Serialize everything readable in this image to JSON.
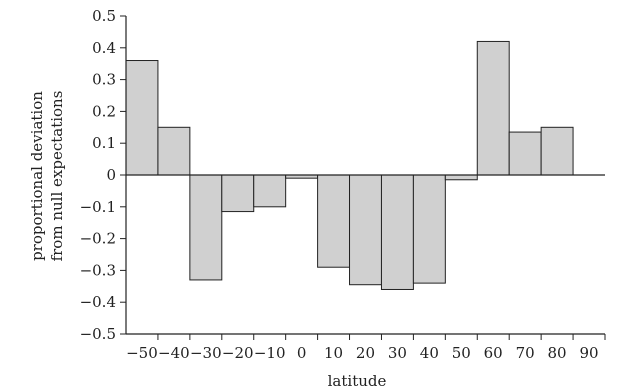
{
  "chart_data": {
    "type": "bar",
    "xlabel": "latitude",
    "ylabel_lines": [
      "proportional deviation",
      "from null expectations"
    ],
    "ylim": [
      -0.5,
      0.5
    ],
    "y_ticks": [
      0.5,
      0.4,
      0.3,
      0.2,
      0.1,
      0,
      -0.1,
      -0.2,
      -0.3,
      -0.4,
      -0.5
    ],
    "y_tick_labels": [
      "0.5",
      "0.4",
      "0.3",
      "0.2",
      "0.1",
      "0",
      "−0.1",
      "−0.2",
      "−0.3",
      "−0.4",
      "−0.5"
    ],
    "x_ticks": [
      -50,
      -40,
      -30,
      -20,
      -10,
      0,
      10,
      20,
      30,
      40,
      50,
      60,
      70,
      80,
      90
    ],
    "x_tick_labels": [
      "−50",
      "−40",
      "−30",
      "−20",
      "−10",
      "0",
      "10",
      "20",
      "30",
      "40",
      "50",
      "60",
      "70",
      "80",
      "90"
    ],
    "bars": [
      {
        "start": -60,
        "end": -50,
        "value": 0.36
      },
      {
        "start": -50,
        "end": -40,
        "value": 0.15
      },
      {
        "start": -40,
        "end": -30,
        "value": -0.33
      },
      {
        "start": -30,
        "end": -20,
        "value": -0.115
      },
      {
        "start": -20,
        "end": -10,
        "value": -0.1
      },
      {
        "start": -10,
        "end": 0,
        "value": -0.01
      },
      {
        "start": 0,
        "end": 10,
        "value": -0.29
      },
      {
        "start": 10,
        "end": 20,
        "value": -0.345
      },
      {
        "start": 20,
        "end": 30,
        "value": -0.36
      },
      {
        "start": 30,
        "end": 40,
        "value": -0.34
      },
      {
        "start": 40,
        "end": 50,
        "value": -0.015
      },
      {
        "start": 50,
        "end": 60,
        "value": 0.42
      },
      {
        "start": 60,
        "end": 70,
        "value": 0.135
      },
      {
        "start": 70,
        "end": 80,
        "value": 0.15
      }
    ],
    "grid": false,
    "colors": {
      "bar_fill": "#d0d0d0",
      "bar_stroke": "#222222",
      "axis": "#222222"
    }
  }
}
